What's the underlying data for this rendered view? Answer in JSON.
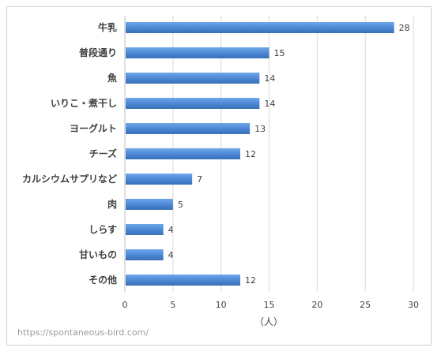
{
  "chart_data": {
    "type": "bar",
    "orientation": "horizontal",
    "categories": [
      "牛乳",
      "普段通り",
      "魚",
      "いりこ・煮干し",
      "ヨーグルト",
      "チーズ",
      "カルシウムサプリなど",
      "肉",
      "しらす",
      "甘いもの",
      "その他"
    ],
    "values": [
      28,
      15,
      14,
      14,
      13,
      12,
      7,
      5,
      4,
      4,
      12
    ],
    "xlabel": "（人）",
    "xlim": [
      0,
      30
    ],
    "xticks": [
      0,
      5,
      10,
      15,
      20,
      25,
      30
    ],
    "grid": "vertical",
    "bar_color": "#4a86d4",
    "data_labels": true
  },
  "watermark": "https://spontaneous-bird.com/"
}
